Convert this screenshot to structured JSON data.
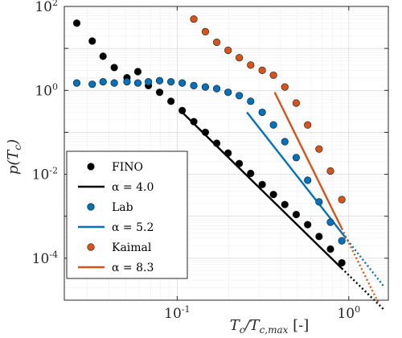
{
  "chart_data": {
    "type": "scatter",
    "xscale": "log",
    "yscale": "log",
    "xlim": [
      0.022,
      1.7
    ],
    "ylim": [
      1e-05,
      100
    ],
    "grid": true,
    "legend_position": "bottom-left",
    "xlabel": "T_c/T_c,max [-]",
    "ylabel": "p(T_c)",
    "x_ticks": [
      {
        "value": 0.1,
        "base": "10",
        "exp": "-1"
      },
      {
        "value": 1,
        "base": "10",
        "exp": "0"
      }
    ],
    "y_ticks": [
      {
        "value": 100,
        "base": "10",
        "exp": "2"
      },
      {
        "value": 1,
        "base": "10",
        "exp": "0"
      },
      {
        "value": 0.01,
        "base": "10",
        "exp": "-2"
      },
      {
        "value": 0.0001,
        "base": "10",
        "exp": "-4"
      }
    ],
    "series": [
      {
        "name": "FINO",
        "kind": "points",
        "color": "#000000",
        "x": [
          0.026,
          0.032,
          0.037,
          0.043,
          0.051,
          0.059,
          0.068,
          0.079,
          0.092,
          0.107,
          0.125,
          0.146,
          0.17,
          0.198,
          0.23,
          0.268,
          0.313,
          0.364,
          0.424,
          0.494,
          0.576,
          0.671,
          0.782,
          0.911
        ],
        "y": [
          40,
          15,
          6.5,
          3.5,
          2.0,
          2.8,
          1.3,
          0.9,
          0.55,
          0.33,
          0.18,
          0.1,
          0.055,
          0.032,
          0.018,
          0.0105,
          0.0057,
          0.0033,
          0.0019,
          0.0011,
          0.00063,
          0.00033,
          0.000165,
          7.78e-05
        ]
      },
      {
        "name": "α = 4.0",
        "kind": "fit",
        "color": "#000000",
        "exponent": 4.0,
        "solid_x": [
          0.107,
          0.911
        ],
        "dotted_x": [
          0.911,
          1.6
        ],
        "y_at_start": 0.3
      },
      {
        "name": "Lab",
        "kind": "points",
        "color": "#0072BD",
        "x": [
          0.026,
          0.032,
          0.037,
          0.043,
          0.051,
          0.059,
          0.068,
          0.079,
          0.092,
          0.107,
          0.125,
          0.146,
          0.17,
          0.198,
          0.23,
          0.268,
          0.313,
          0.364,
          0.424,
          0.494,
          0.576,
          0.671,
          0.782,
          0.911
        ],
        "y": [
          1.5,
          1.4,
          1.6,
          1.5,
          1.6,
          1.5,
          1.6,
          1.7,
          1.6,
          1.5,
          1.3,
          1.2,
          1.1,
          0.9,
          0.75,
          0.55,
          0.3,
          0.15,
          0.06,
          0.025,
          0.0072,
          0.0022,
          0.00072,
          0.00026
        ]
      },
      {
        "name": "α = 5.2",
        "kind": "fit",
        "color": "#0072BD",
        "exponent": 5.2,
        "solid_x": [
          0.255,
          0.95
        ],
        "dotted_x": [
          0.95,
          1.6
        ],
        "y_at_start": 0.3
      },
      {
        "name": "Kaimal",
        "kind": "points",
        "color": "#D95319",
        "x": [
          0.125,
          0.146,
          0.17,
          0.198,
          0.23,
          0.268,
          0.313,
          0.364,
          0.424,
          0.494,
          0.576,
          0.671,
          0.782,
          0.911
        ],
        "y": [
          50,
          25,
          14,
          9,
          6,
          4,
          3,
          2.3,
          1.2,
          0.5,
          0.15,
          0.04,
          0.012,
          0.0025
        ]
      },
      {
        "name": "α = 8.3",
        "kind": "fit",
        "color": "#D95319",
        "exponent": 8.3,
        "solid_x": [
          0.37,
          0.911
        ],
        "dotted_x": [
          0.911,
          1.48
        ],
        "y_at_start": 0.9
      }
    ]
  }
}
